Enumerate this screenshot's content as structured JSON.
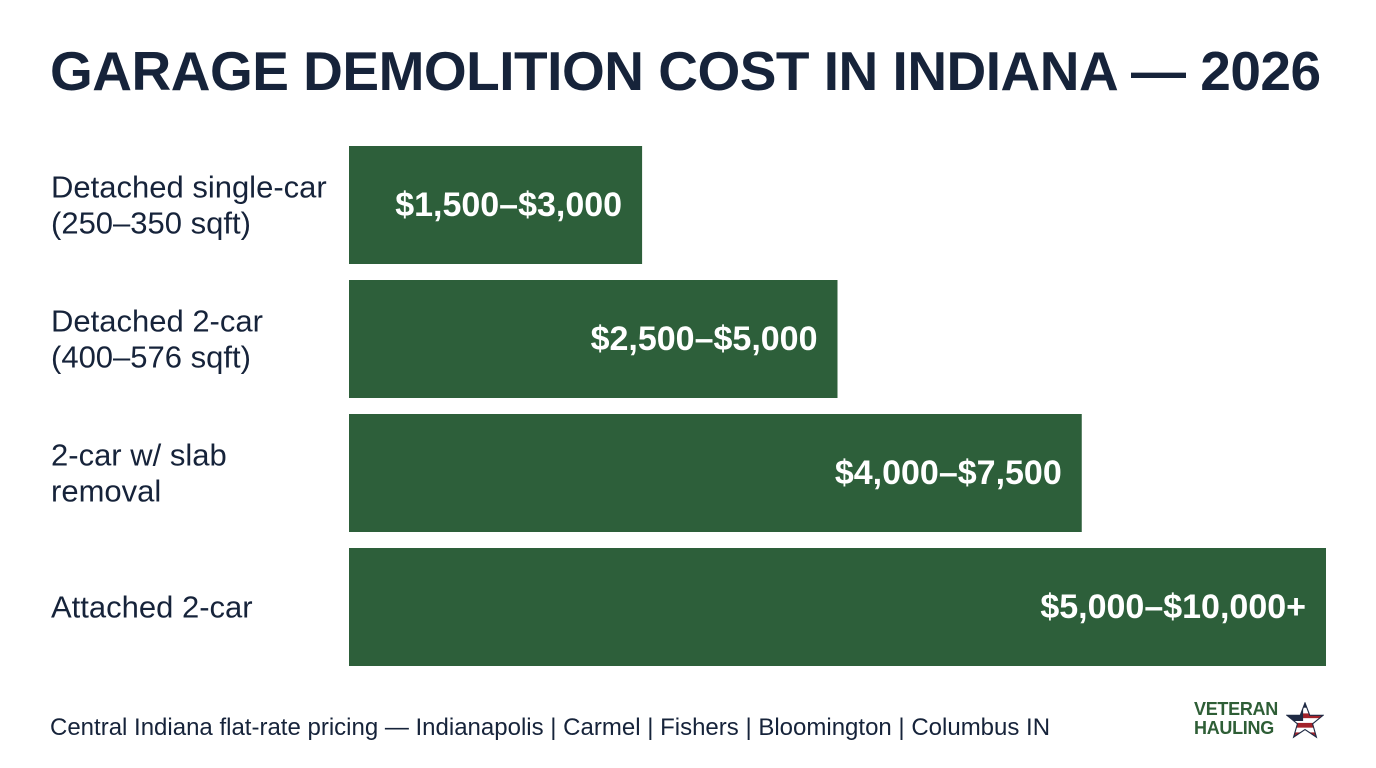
{
  "chart_data": {
    "type": "bar",
    "orientation": "horizontal",
    "title": "GARAGE DEMOLITION COST IN INDIANA — 2026",
    "categories": [
      [
        "Detached single-car",
        "(250–350 sqft)"
      ],
      [
        "Detached 2-car",
        "(400–576 sqft)"
      ],
      [
        "2-car w/ slab",
        "removal"
      ],
      [
        "Attached 2-car"
      ]
    ],
    "ranges": [
      [
        1500,
        3000
      ],
      [
        2500,
        5000
      ],
      [
        4000,
        7500
      ],
      [
        5000,
        10000
      ]
    ],
    "values": [
      3000,
      5000,
      7500,
      10000
    ],
    "data_labels": [
      "$1,500–$3,000",
      "$2,500–$5,000",
      "$4,000–$7,500",
      "$5,000–$10,000+"
    ],
    "xlim": [
      0,
      10000
    ],
    "grid": false,
    "legend": "none",
    "colors": {
      "bar": "#2d5f3a",
      "bar_label": "#ffffff",
      "text": "#16233a"
    }
  },
  "footer": "Central Indiana flat-rate pricing — Indianapolis | Carmel | Fishers | Bloomington | Columbus IN",
  "logo": {
    "line1": "VETERAN",
    "line2": "HAULING",
    "icon": "star-flag-icon",
    "colors": {
      "green": "#2e5e36",
      "red": "#a3232b",
      "navy": "#1f2a44"
    }
  }
}
